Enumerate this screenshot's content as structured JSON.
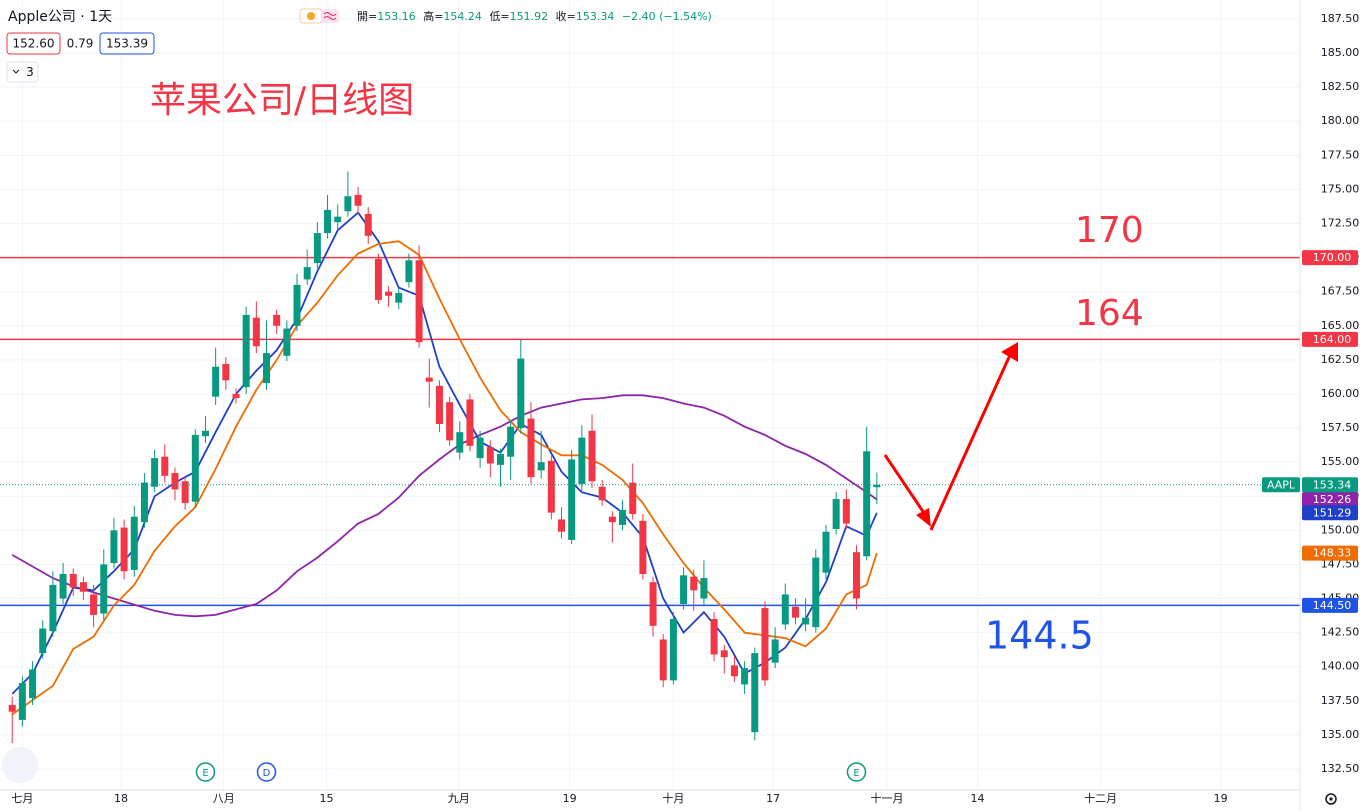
{
  "chart_data": {
    "type": "candlestick",
    "title": "Apple公司 · 1天",
    "legend_labels": [
      "開=",
      "高=",
      "低=",
      "收="
    ],
    "change_text": "−2.40 (−1.54%)",
    "quote": {
      "bid": "152.60",
      "spread": "0.79",
      "ask": "153.39"
    },
    "indicator_count": "3",
    "ticker": "AAPL",
    "up_color": "#089981",
    "down_color": "#f23645",
    "grid": true,
    "xlim": [
      -1.2,
      126.6
    ],
    "ylim": [
      130.96,
      188.89
    ],
    "xticks": [
      {
        "value": 1,
        "label": "七月"
      },
      {
        "value": 10.7,
        "label": "18"
      },
      {
        "value": 20.8,
        "label": "八月"
      },
      {
        "value": 30.9,
        "label": "15"
      },
      {
        "value": 43.9,
        "label": "九月"
      },
      {
        "value": 54.8,
        "label": "19"
      },
      {
        "value": 65,
        "label": "十月"
      },
      {
        "value": 74.8,
        "label": "17"
      },
      {
        "value": 86,
        "label": "十一月"
      },
      {
        "value": 94.9,
        "label": "14"
      },
      {
        "value": 107,
        "label": "十二月"
      },
      {
        "value": 118.8,
        "label": "19"
      }
    ],
    "yticks": [
      {
        "value": 187.5,
        "label": "187.50"
      },
      {
        "value": 185,
        "label": "185.00"
      },
      {
        "value": 182.5,
        "label": "182.50"
      },
      {
        "value": 180,
        "label": "180.00"
      },
      {
        "value": 177.5,
        "label": "177.50"
      },
      {
        "value": 175,
        "label": "175.00"
      },
      {
        "value": 172.5,
        "label": "172.50"
      },
      {
        "value": 170,
        "label": "170.00"
      },
      {
        "value": 167.5,
        "label": "167.50"
      },
      {
        "value": 165,
        "label": "165.00"
      },
      {
        "value": 162.5,
        "label": "162.50"
      },
      {
        "value": 160,
        "label": "160.00"
      },
      {
        "value": 157.5,
        "label": "157.50"
      },
      {
        "value": 155,
        "label": "155.00"
      },
      {
        "value": 152.5,
        "label": "152.50"
      },
      {
        "value": 150,
        "label": "150.00"
      },
      {
        "value": 147.5,
        "label": "147.50"
      },
      {
        "value": 145,
        "label": "145.00"
      },
      {
        "value": 142.5,
        "label": "142.50"
      },
      {
        "value": 140,
        "label": "140.00"
      },
      {
        "value": 137.5,
        "label": "137.50"
      },
      {
        "value": 135,
        "label": "135.00"
      },
      {
        "value": 132.5,
        "label": "132.50"
      }
    ],
    "open": [
      137.2,
      136.1,
      137.7,
      141.0,
      142.6,
      145.0,
      146.8,
      146.2,
      145.3,
      143.9,
      147.6,
      150.2,
      147.1,
      150.6,
      153.2,
      155.4,
      154.2,
      153.6,
      152.1,
      156.9,
      159.8,
      162.2,
      160.0,
      160.5,
      165.6,
      160.8,
      165.8,
      162.8,
      165.0,
      168.4,
      169.6,
      171.8,
      172.6,
      173.4,
      174.6,
      173.2,
      169.9,
      167.5,
      166.7,
      168.2,
      169.8,
      161.2,
      160.6,
      159.4,
      155.7,
      159.6,
      155.3,
      156.1,
      154.8,
      155.4,
      157.5,
      158.2,
      154.4,
      155.1,
      150.8,
      149.3,
      153.4,
      157.3,
      153.2,
      151.0,
      150.4,
      153.5,
      150.7,
      146.2,
      142.0,
      139.0,
      144.6,
      146.6,
      145.0,
      143.5,
      141.2,
      140.1,
      138.7,
      135.2,
      144.3,
      140.3,
      143.1,
      144.4,
      143.1,
      142.9,
      146.9,
      150.1,
      152.3,
      148.4,
      148.1,
      153.16
    ],
    "high": [
      137.8,
      139.3,
      140.4,
      143.4,
      147.0,
      147.6,
      147.2,
      146.6,
      146.0,
      148.6,
      150.9,
      150.8,
      151.8,
      154.2,
      155.9,
      156.3,
      154.6,
      153.9,
      157.4,
      158.4,
      163.4,
      162.7,
      160.4,
      166.4,
      166.8,
      165.4,
      166.2,
      165.4,
      168.8,
      170.6,
      172.6,
      174.6,
      173.9,
      176.3,
      175.2,
      173.7,
      170.3,
      167.9,
      167.8,
      170.3,
      170.9,
      162.6,
      161.0,
      159.8,
      158.0,
      160.0,
      157.3,
      156.6,
      156.0,
      158.1,
      164.0,
      159.4,
      157.3,
      155.5,
      151.7,
      155.9,
      157.7,
      158.5,
      153.7,
      151.4,
      152.2,
      154.9,
      151.2,
      146.6,
      142.4,
      144.0,
      147.3,
      147.1,
      147.8,
      144.0,
      141.6,
      140.8,
      140.4,
      141.4,
      144.8,
      142.9,
      146.1,
      145.0,
      145.0,
      148.6,
      150.4,
      152.8,
      153.0,
      148.9,
      157.6,
      154.24
    ],
    "low": [
      134.4,
      135.6,
      137.2,
      140.6,
      142.2,
      144.6,
      145.2,
      144.9,
      142.9,
      143.4,
      147.2,
      146.4,
      146.6,
      150.2,
      152.8,
      153.5,
      152.2,
      151.5,
      151.7,
      156.4,
      159.2,
      160.3,
      159.3,
      160.0,
      163.0,
      160.3,
      164.4,
      162.4,
      164.6,
      168.0,
      169.2,
      171.4,
      172.0,
      173.0,
      173.2,
      171.0,
      166.6,
      166.4,
      166.2,
      167.8,
      163.4,
      159.0,
      157.2,
      156.2,
      155.2,
      155.8,
      154.6,
      153.9,
      153.2,
      153.7,
      157.1,
      153.4,
      153.8,
      150.8,
      149.4,
      149.0,
      152.9,
      153.1,
      151.8,
      149.1,
      150.0,
      150.8,
      146.4,
      142.2,
      138.5,
      138.7,
      144.2,
      144.1,
      144.5,
      140.4,
      139.5,
      138.9,
      138.0,
      134.6,
      138.6,
      139.9,
      142.7,
      143.1,
      142.6,
      142.5,
      146.4,
      149.7,
      150.1,
      144.2,
      147.8,
      151.92
    ],
    "close": [
      136.7,
      138.8,
      139.8,
      142.8,
      146.0,
      146.8,
      145.8,
      145.5,
      143.8,
      147.5,
      150.0,
      147.0,
      151.0,
      153.5,
      155.3,
      154.0,
      153.0,
      152.0,
      157.0,
      157.3,
      162.0,
      161.0,
      159.7,
      165.8,
      163.5,
      163.0,
      165.0,
      164.8,
      168.0,
      169.3,
      171.8,
      173.5,
      173.0,
      174.5,
      173.8,
      171.6,
      166.9,
      167.2,
      167.4,
      169.8,
      163.8,
      160.9,
      157.8,
      156.6,
      157.2,
      156.2,
      156.8,
      154.9,
      155.6,
      157.6,
      162.6,
      153.9,
      155.0,
      151.3,
      149.9,
      155.2,
      156.8,
      153.6,
      152.2,
      150.6,
      151.5,
      151.2,
      146.8,
      143.0,
      139.0,
      143.5,
      146.7,
      145.6,
      146.5,
      140.9,
      140.7,
      139.3,
      139.9,
      141.0,
      139.0,
      142.0,
      145.3,
      143.6,
      143.6,
      148.0,
      149.9,
      152.3,
      150.5,
      145.0,
      155.8,
      153.34
    ],
    "series": [
      {
        "color": "#8e24aa",
        "x": [
          0,
          4,
          6,
          10,
          14,
          16,
          18,
          20,
          22,
          24,
          26,
          28,
          30,
          32,
          34,
          36,
          38,
          40,
          42,
          44,
          46,
          48,
          50,
          52,
          54,
          56,
          58,
          60,
          62,
          64,
          66,
          68,
          70,
          72,
          74,
          76,
          78,
          80,
          82,
          84,
          85
        ],
        "values": [
          148.2,
          146.5,
          145.9,
          145.0,
          144.1,
          143.8,
          143.7,
          143.8,
          144.2,
          144.6,
          145.6,
          147.0,
          148.0,
          149.2,
          150.5,
          151.2,
          152.4,
          154.0,
          155.2,
          156.3,
          157.0,
          157.6,
          158.4,
          159.0,
          159.3,
          159.6,
          159.7,
          159.9,
          159.9,
          159.7,
          159.3,
          159.0,
          158.4,
          157.6,
          157.0,
          156.2,
          155.6,
          154.8,
          153.8,
          152.8,
          152.26
        ]
      },
      {
        "color": "#1e40c8",
        "x": [
          0,
          2,
          4,
          6,
          8,
          10,
          12,
          14,
          16,
          18,
          20,
          22,
          24,
          26,
          28,
          30,
          32,
          34,
          36,
          38,
          40,
          42,
          44,
          46,
          48,
          50,
          52,
          54,
          56,
          58,
          60,
          62,
          64,
          66,
          68,
          70,
          72,
          74,
          76,
          78,
          80,
          82,
          84,
          85
        ],
        "values": [
          138.0,
          139.5,
          142.5,
          145.8,
          145.6,
          147.0,
          148.6,
          152.5,
          153.5,
          154.3,
          157.2,
          160.0,
          161.7,
          163.2,
          165.5,
          169.0,
          172.0,
          173.3,
          171.2,
          167.8,
          167.2,
          162.0,
          159.2,
          156.5,
          155.7,
          157.8,
          157.0,
          154.3,
          152.8,
          152.4,
          151.3,
          149.5,
          145.0,
          142.5,
          144.0,
          142.2,
          139.5,
          140.3,
          141.4,
          143.5,
          146.2,
          150.3,
          149.6,
          151.29
        ]
      },
      {
        "color": "#ef6c00",
        "x": [
          0,
          4,
          6,
          8,
          10,
          12,
          14,
          16,
          18,
          20,
          22,
          24,
          26,
          28,
          30,
          32,
          34,
          36,
          38,
          40,
          42,
          44,
          46,
          48,
          50,
          52,
          54,
          56,
          58,
          60,
          62,
          64,
          66,
          68,
          70,
          72,
          74,
          76,
          78,
          80,
          82,
          84,
          85
        ],
        "values": [
          136.5,
          138.6,
          141.3,
          142.2,
          144.5,
          146.0,
          148.5,
          150.3,
          151.7,
          154.5,
          157.6,
          160.3,
          162.5,
          165.0,
          166.7,
          168.7,
          170.3,
          171.0,
          171.2,
          170.2,
          167.0,
          164.0,
          161.2,
          158.8,
          157.2,
          156.3,
          155.5,
          155.5,
          154.8,
          153.7,
          152.0,
          149.7,
          147.6,
          145.8,
          144.2,
          142.5,
          142.3,
          142.1,
          141.5,
          142.8,
          145.3,
          146.0,
          148.33
        ]
      }
    ],
    "hlines": [
      {
        "value": 170,
        "label": "170.00",
        "color": "#f23645"
      },
      {
        "value": 164,
        "label": "164.00",
        "color": "#f23645"
      },
      {
        "value": 144.5,
        "label": "144.50",
        "color": "#1e53e5"
      }
    ],
    "annotations": [
      {
        "text": "苹果公司/日线图",
        "color": "#f23645"
      },
      {
        "text": "170",
        "color": "#f23645"
      },
      {
        "text": "164",
        "color": "#f23645"
      },
      {
        "text": "144.5",
        "color": "#1e53e5"
      }
    ],
    "events": [
      {
        "label": "E",
        "x": 19,
        "color": "#089981"
      },
      {
        "label": "D",
        "x": 25,
        "color": "#1e53e5"
      },
      {
        "label": "E",
        "x": 83,
        "color": "#089981"
      }
    ]
  }
}
